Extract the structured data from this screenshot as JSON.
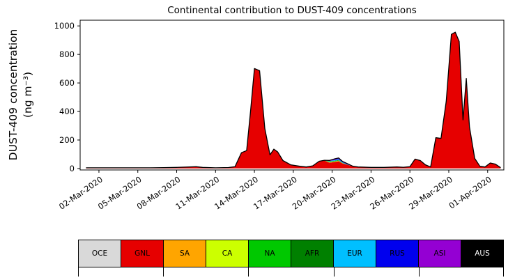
{
  "chart_data": {
    "type": "area",
    "stacked": true,
    "title": "Continental contribution to DUST-409 concentrations",
    "ylabel_line1": "DUST-409 concentration",
    "ylabel_line2": "(ng m⁻³)",
    "xlabel": "",
    "x_unit": "days since 01-Mar-2020",
    "xlim": [
      0.55,
      33.25
    ],
    "ylim": [
      -10,
      1040
    ],
    "grid": false,
    "legend_position": "bottom",
    "yticks": [
      0,
      200,
      400,
      600,
      800,
      1000
    ],
    "xticks": {
      "values": [
        2,
        5,
        8,
        11,
        14,
        17,
        20,
        23,
        26,
        29,
        32
      ],
      "labels": [
        "02-Mar-2020",
        "05-Mar-2020",
        "08-Mar-2020",
        "11-Mar-2020",
        "14-Mar-2020",
        "17-Mar-2020",
        "20-Mar-2020",
        "23-Mar-2020",
        "26-Mar-2020",
        "29-Mar-2020",
        "01-Apr-2020"
      ]
    },
    "x": [
      1,
      2,
      3,
      4,
      5,
      6,
      7,
      8,
      9,
      9.5,
      10,
      11,
      12,
      12.5,
      13,
      13.4,
      13.7,
      14,
      14.4,
      14.8,
      15.2,
      15.5,
      15.8,
      16.2,
      16.8,
      17.5,
      18,
      18.5,
      19,
      19.4,
      19.8,
      20.2,
      20.5,
      20.8,
      21.2,
      21.6,
      22,
      23,
      24,
      25,
      25.5,
      26,
      26.4,
      26.8,
      27.2,
      27.6,
      28,
      28.4,
      28.8,
      29.2,
      29.5,
      29.8,
      30.1,
      30.35,
      30.6,
      31,
      31.4,
      31.8,
      32.2,
      32.6,
      33
    ],
    "series": [
      {
        "name": "OCE",
        "color": "#d9d9d9",
        "values": [
          1,
          1,
          1,
          1,
          1,
          1,
          1,
          1,
          1,
          1,
          1,
          1,
          1,
          1,
          1,
          1,
          1,
          1,
          1,
          1,
          1,
          1,
          1,
          1,
          1,
          1,
          1,
          1,
          1,
          1,
          1,
          1,
          1,
          1,
          1,
          1,
          1,
          1,
          1,
          1,
          1,
          1,
          1,
          1,
          1,
          1,
          1,
          1,
          1,
          1,
          1,
          1,
          1,
          1,
          1,
          1,
          1,
          1,
          1,
          1,
          1
        ]
      },
      {
        "name": "GNL",
        "color": "#e60000",
        "values": [
          4,
          4,
          4,
          4,
          4,
          4,
          5,
          7,
          10,
          12,
          7,
          4,
          6,
          12,
          110,
          125,
          400,
          700,
          685,
          280,
          95,
          135,
          115,
          55,
          25,
          15,
          10,
          18,
          50,
          55,
          40,
          45,
          50,
          35,
          25,
          15,
          10,
          7,
          7,
          10,
          8,
          12,
          65,
          55,
          25,
          10,
          215,
          210,
          470,
          940,
          955,
          890,
          340,
          630,
          290,
          70,
          15,
          10,
          38,
          30,
          5
        ]
      },
      {
        "name": "SA",
        "color": "#ffa500",
        "values": [
          0,
          0,
          0,
          0,
          0,
          0,
          0,
          0,
          0,
          0,
          0,
          0,
          0,
          0,
          0,
          0,
          0,
          0,
          0,
          0,
          0,
          0,
          0,
          0,
          0,
          0,
          0,
          0,
          0,
          0,
          2,
          2,
          2,
          2,
          0,
          0,
          0,
          0,
          0,
          0,
          0,
          0,
          0,
          0,
          0,
          0,
          0,
          0,
          0,
          0,
          0,
          0,
          0,
          0,
          0,
          0,
          0,
          0,
          0,
          0,
          0
        ]
      },
      {
        "name": "CA",
        "color": "#ccff00",
        "values": [
          0,
          0,
          0,
          0,
          0,
          0,
          0,
          0,
          0,
          0,
          0,
          0,
          0,
          0,
          0,
          0,
          0,
          0,
          0,
          0,
          0,
          0,
          0,
          0,
          0,
          0,
          0,
          0,
          0,
          0,
          2,
          2,
          2,
          0,
          0,
          0,
          0,
          0,
          0,
          0,
          0,
          0,
          0,
          0,
          0,
          0,
          0,
          0,
          0,
          0,
          0,
          0,
          0,
          0,
          0,
          0,
          0,
          0,
          0,
          0,
          0
        ]
      },
      {
        "name": "NA",
        "color": "#00c800",
        "values": [
          0,
          0,
          0,
          0,
          0,
          0,
          0,
          0,
          0,
          0,
          0,
          0,
          0,
          0,
          0,
          0,
          0,
          0,
          0,
          0,
          0,
          0,
          0,
          0,
          0,
          0,
          0,
          0,
          0,
          2,
          3,
          3,
          3,
          2,
          0,
          0,
          0,
          0,
          0,
          0,
          0,
          0,
          0,
          0,
          0,
          0,
          0,
          0,
          0,
          0,
          0,
          0,
          0,
          0,
          0,
          0,
          0,
          0,
          0,
          0,
          0
        ]
      },
      {
        "name": "AFR",
        "color": "#008000",
        "values": [
          0,
          0,
          0,
          0,
          0,
          0,
          0,
          0,
          0,
          0,
          0,
          0,
          0,
          0,
          0,
          0,
          0,
          0,
          0,
          0,
          0,
          0,
          0,
          0,
          0,
          0,
          0,
          0,
          0,
          0,
          2,
          2,
          2,
          0,
          0,
          0,
          0,
          0,
          0,
          0,
          0,
          0,
          0,
          0,
          0,
          0,
          0,
          0,
          0,
          0,
          0,
          0,
          0,
          0,
          0,
          0,
          0,
          0,
          0,
          0,
          0
        ]
      },
      {
        "name": "EUR",
        "color": "#00bfff",
        "values": [
          0,
          0,
          0,
          0,
          0,
          0,
          0,
          0,
          0,
          0,
          0,
          0,
          0,
          0,
          0,
          0,
          0,
          0,
          0,
          0,
          0,
          0,
          0,
          0,
          0,
          0,
          0,
          0,
          0,
          0,
          3,
          4,
          4,
          3,
          2,
          0,
          0,
          0,
          0,
          0,
          0,
          0,
          0,
          0,
          0,
          0,
          0,
          0,
          0,
          0,
          0,
          0,
          0,
          0,
          0,
          0,
          0,
          0,
          0,
          0,
          0
        ]
      },
      {
        "name": "RUS",
        "color": "#0000ee",
        "values": [
          0,
          0,
          0,
          0,
          0,
          0,
          0,
          0,
          0,
          0,
          0,
          0,
          0,
          0,
          0,
          0,
          0,
          0,
          0,
          0,
          0,
          0,
          0,
          0,
          0,
          0,
          0,
          0,
          0,
          0,
          0,
          3,
          4,
          3,
          2,
          0,
          0,
          0,
          0,
          0,
          0,
          0,
          0,
          0,
          0,
          0,
          0,
          0,
          0,
          0,
          0,
          0,
          0,
          0,
          0,
          0,
          0,
          0,
          0,
          0,
          0
        ]
      },
      {
        "name": "ASI",
        "color": "#9400d3",
        "values": [
          0,
          0,
          0,
          0,
          0,
          0,
          0,
          0,
          0,
          0,
          0,
          0,
          0,
          0,
          0,
          0,
          0,
          0,
          0,
          0,
          0,
          0,
          0,
          0,
          0,
          0,
          0,
          0,
          0,
          0,
          4,
          6,
          6,
          4,
          3,
          0,
          0,
          0,
          0,
          0,
          0,
          0,
          0,
          0,
          0,
          0,
          0,
          0,
          0,
          0,
          0,
          0,
          0,
          0,
          0,
          0,
          0,
          0,
          0,
          0,
          0
        ]
      },
      {
        "name": "AUS",
        "color": "#000000",
        "values": [
          0,
          0,
          0,
          0,
          0,
          0,
          0,
          0,
          0,
          0,
          0,
          0,
          0,
          0,
          0,
          0,
          0,
          0,
          0,
          0,
          0,
          0,
          0,
          0,
          0,
          0,
          0,
          0,
          0,
          0,
          0,
          0,
          0,
          0,
          0,
          0,
          0,
          0,
          0,
          0,
          0,
          0,
          0,
          0,
          0,
          0,
          0,
          0,
          0,
          0,
          0,
          0,
          0,
          0,
          0,
          0,
          0,
          0,
          0,
          0,
          0
        ]
      }
    ]
  },
  "legend": {
    "items": [
      {
        "label": "OCE",
        "color": "#d9d9d9",
        "text_color": "#000000"
      },
      {
        "label": "GNL",
        "color": "#e60000",
        "text_color": "#000000"
      },
      {
        "label": "SA",
        "color": "#ffa500",
        "text_color": "#000000"
      },
      {
        "label": "CA",
        "color": "#ccff00",
        "text_color": "#000000"
      },
      {
        "label": "NA",
        "color": "#00c800",
        "text_color": "#000000"
      },
      {
        "label": "AFR",
        "color": "#008000",
        "text_color": "#000000"
      },
      {
        "label": "EUR",
        "color": "#00bfff",
        "text_color": "#000000"
      },
      {
        "label": "RUS",
        "color": "#0000ee",
        "text_color": "#000000"
      },
      {
        "label": "ASI",
        "color": "#9400d3",
        "text_color": "#000000"
      },
      {
        "label": "AUS",
        "color": "#000000",
        "text_color": "#ffffff"
      }
    ]
  }
}
